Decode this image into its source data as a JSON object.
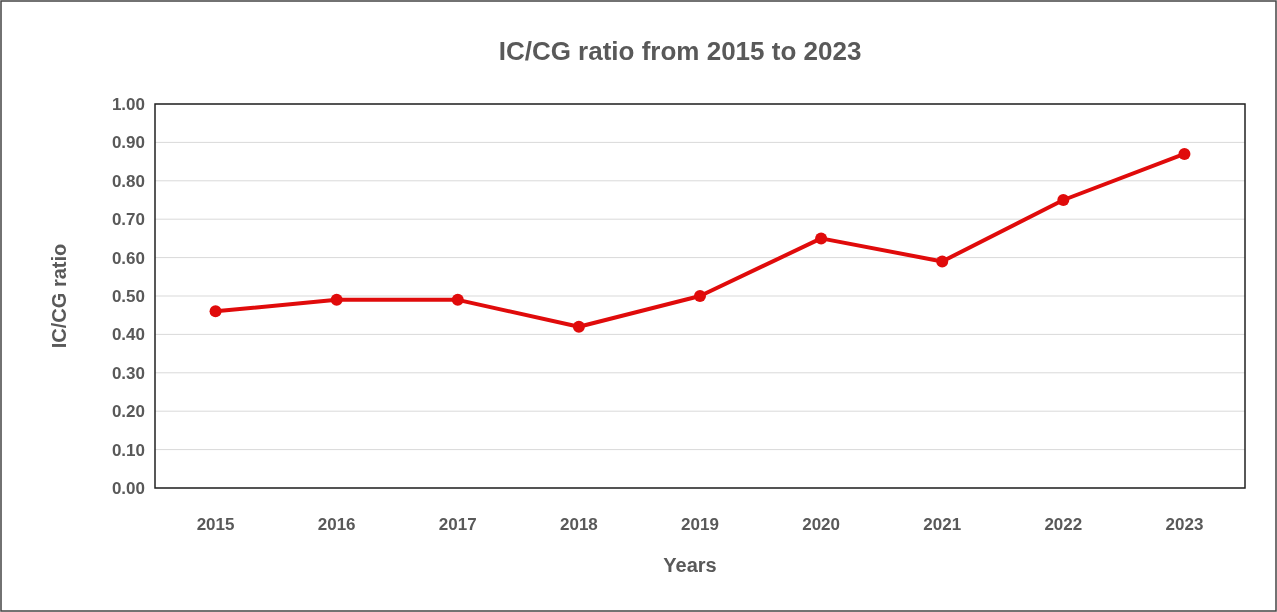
{
  "chart_data": {
    "type": "line",
    "title": "IC/CG ratio from 2015 to 2023",
    "xlabel": "Years",
    "ylabel": "IC/CG ratio",
    "categories": [
      "2015",
      "2016",
      "2017",
      "2018",
      "2019",
      "2020",
      "2021",
      "2022",
      "2023"
    ],
    "series": [
      {
        "color": "#e00b0b",
        "values": [
          0.46,
          0.49,
          0.49,
          0.42,
          0.5,
          0.65,
          0.59,
          0.75,
          0.87
        ]
      }
    ],
    "ylim": [
      0,
      1
    ],
    "yticks": [
      {
        "value": 0,
        "label": "0.00"
      },
      {
        "value": 0.1,
        "label": "0.10"
      },
      {
        "value": 0.2,
        "label": "0.20"
      },
      {
        "value": 0.3,
        "label": "0.30"
      },
      {
        "value": 0.4,
        "label": "0.40"
      },
      {
        "value": 0.5,
        "label": "0.50"
      },
      {
        "value": 0.6,
        "label": "0.60"
      },
      {
        "value": 0.7,
        "label": "0.70"
      },
      {
        "value": 0.8,
        "label": "0.80"
      },
      {
        "value": 0.9,
        "label": "0.90"
      },
      {
        "value": 1,
        "label": "1.00"
      }
    ],
    "grid": "y",
    "marker": "circle",
    "line_style": "solid"
  }
}
